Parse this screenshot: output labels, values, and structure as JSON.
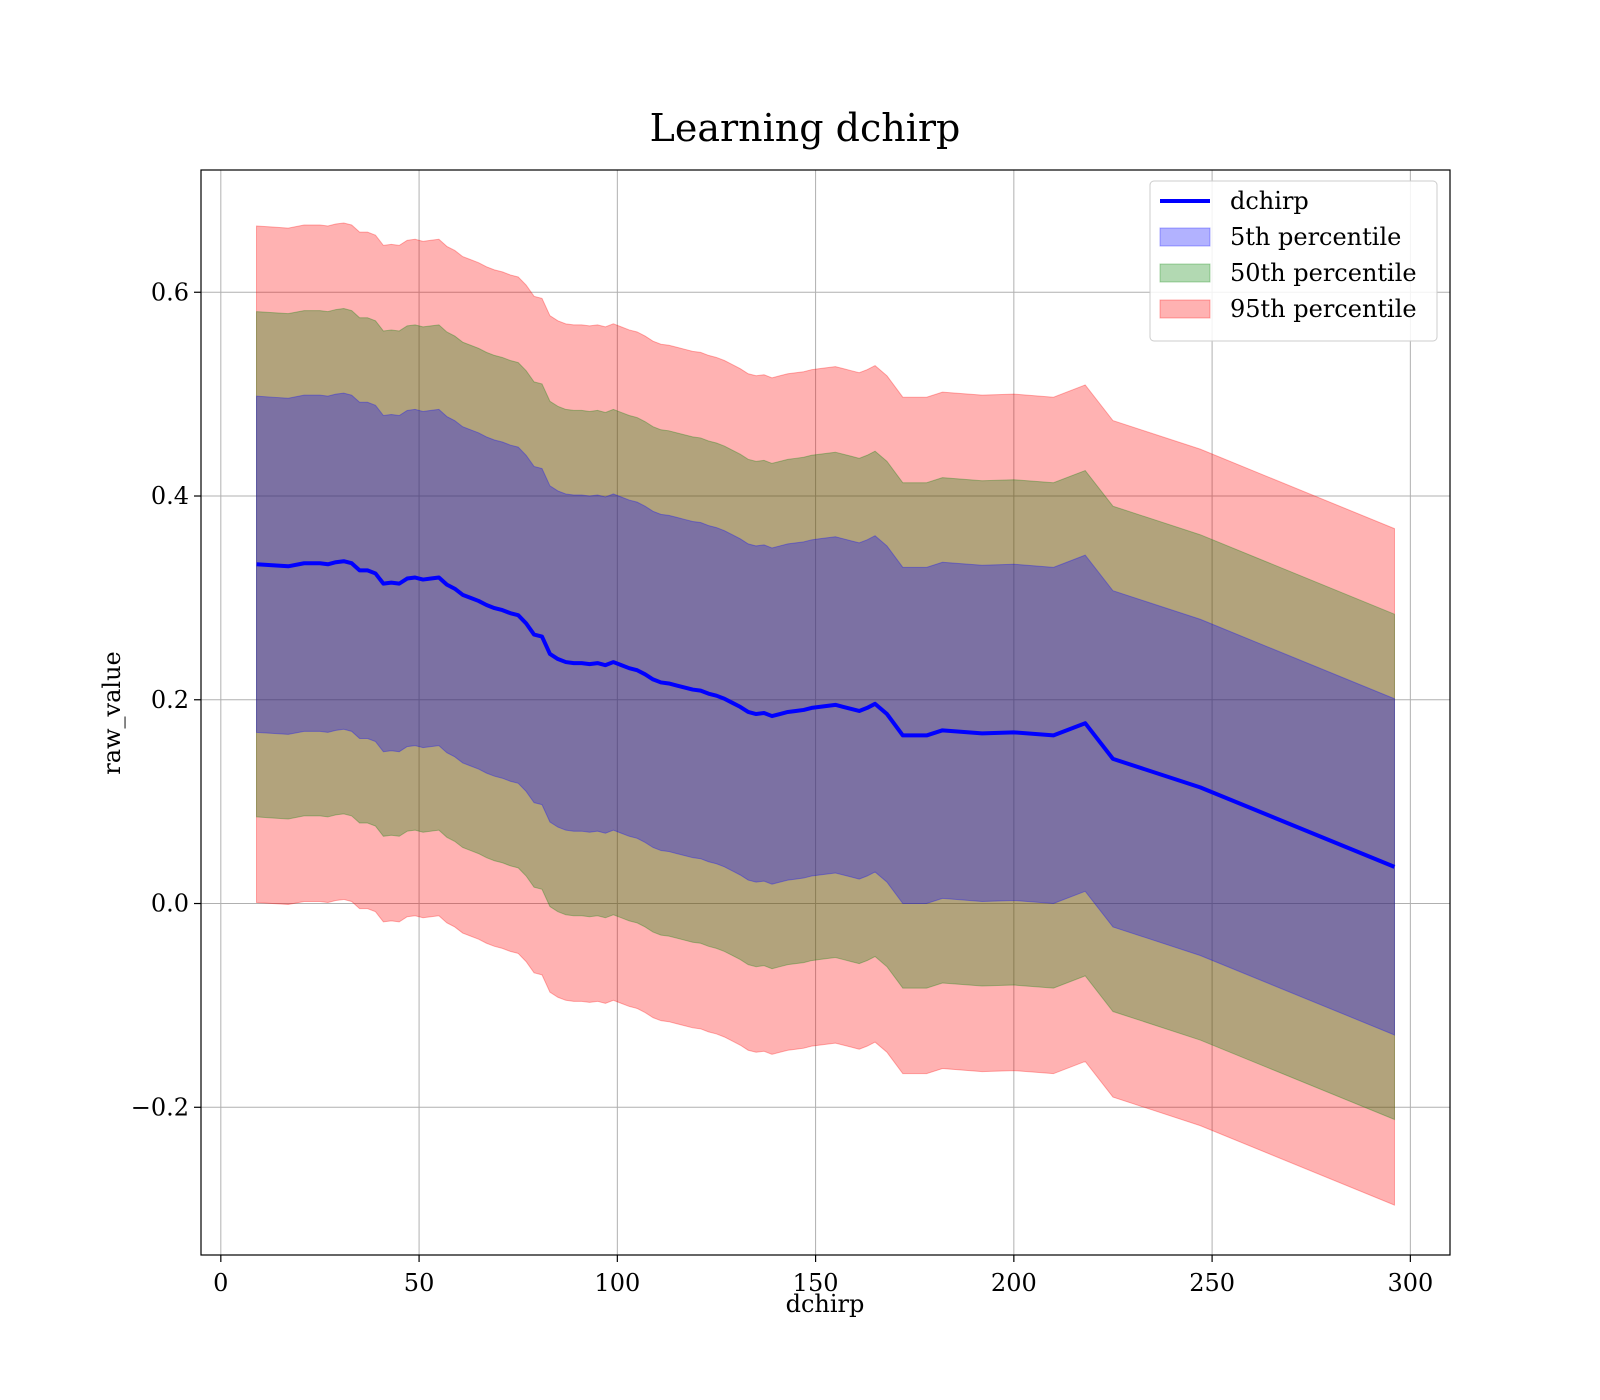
{
  "chart_data": {
    "type": "area",
    "title": "Learning dchirp",
    "xlabel": "dchirp",
    "ylabel": "raw_value",
    "xlim": [
      -5,
      310
    ],
    "ylim": [
      -0.345,
      0.72
    ],
    "x_ticks": [
      0,
      50,
      100,
      150,
      200,
      250,
      300
    ],
    "y_ticks": [
      -0.2,
      0.0,
      0.2,
      0.4,
      0.6
    ],
    "x_tick_labels": [
      "0",
      "50",
      "100",
      "150",
      "200",
      "250",
      "300"
    ],
    "y_tick_labels": [
      "−0.2",
      "0.0",
      "0.2",
      "0.4",
      "0.6"
    ],
    "grid": true,
    "legend_position": "top-right",
    "x": [
      9,
      13,
      17,
      21,
      25,
      27,
      29,
      31,
      33,
      35,
      37,
      39,
      41,
      43,
      45,
      47,
      49,
      51,
      53,
      55,
      57,
      59,
      61,
      63,
      65,
      67,
      69,
      71,
      73,
      75,
      77,
      79,
      81,
      83,
      85,
      87,
      89,
      91,
      93,
      95,
      97,
      99,
      101,
      103,
      105,
      107,
      109,
      111,
      113,
      115,
      117,
      119,
      121,
      123,
      125,
      127,
      129,
      131,
      133,
      135,
      137,
      139,
      141,
      143,
      145,
      147,
      149,
      151,
      153,
      155,
      157,
      159,
      161,
      163,
      165,
      168,
      172,
      178,
      182,
      192,
      200,
      210,
      218,
      225,
      247,
      296
    ],
    "series": [
      {
        "name": "dchirp",
        "kind": "line",
        "color": "#0000ff",
        "values": [
          0.333,
          0.332,
          0.331,
          0.334,
          0.334,
          0.333,
          0.335,
          0.336,
          0.334,
          0.327,
          0.327,
          0.324,
          0.314,
          0.315,
          0.314,
          0.319,
          0.32,
          0.318,
          0.319,
          0.32,
          0.313,
          0.309,
          0.303,
          0.3,
          0.297,
          0.293,
          0.29,
          0.288,
          0.285,
          0.283,
          0.275,
          0.264,
          0.262,
          0.245,
          0.24,
          0.237,
          0.236,
          0.236,
          0.235,
          0.236,
          0.234,
          0.237,
          0.234,
          0.231,
          0.229,
          0.225,
          0.22,
          0.217,
          0.216,
          0.214,
          0.212,
          0.21,
          0.209,
          0.206,
          0.204,
          0.201,
          0.197,
          0.193,
          0.188,
          0.186,
          0.187,
          0.184,
          0.186,
          0.188,
          0.189,
          0.19,
          0.192,
          0.193,
          0.194,
          0.195,
          0.193,
          0.191,
          0.189,
          0.192,
          0.196,
          0.186,
          0.165,
          0.165,
          0.17,
          0.167,
          0.168,
          0.165,
          0.177,
          0.142,
          0.114,
          0.036
        ]
      },
      {
        "name": "5th percentile",
        "kind": "band",
        "color": "#0000ff",
        "opacity": 0.3,
        "half_width": 0.165
      },
      {
        "name": "50th percentile",
        "kind": "band",
        "color": "#008000",
        "opacity": 0.3,
        "half_width": 0.248
      },
      {
        "name": "95th percentile",
        "kind": "band",
        "color": "#ff0000",
        "opacity": 0.3,
        "half_width": 0.332
      }
    ]
  }
}
